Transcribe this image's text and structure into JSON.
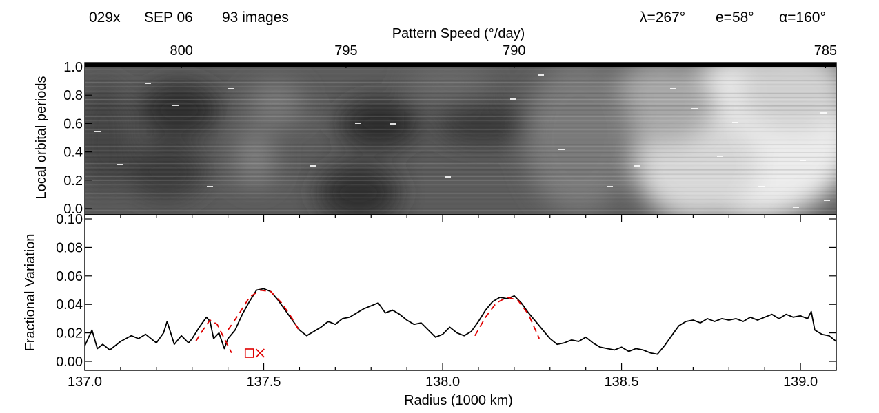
{
  "header": {
    "obs_id": "029x",
    "date": "SEP 06",
    "image_count": "93 images",
    "lambda": "λ=267°",
    "emission": "e=58°",
    "phase": "α=160°"
  },
  "chart_data": [
    {
      "type": "heatmap",
      "colormap": "grayscale",
      "ylabel": "Local orbital periods",
      "ylim": [
        0,
        1.0
      ],
      "yticks": [
        0.0,
        0.2,
        0.4,
        0.6,
        0.8,
        1.0
      ],
      "ytick_labels": [
        "0.0",
        "0.2",
        "0.4",
        "0.6",
        "0.8",
        "1.0"
      ],
      "top_axis": {
        "label": "Pattern Speed (°/day)",
        "ticks": [
          {
            "radius": 137.27,
            "label": "800"
          },
          {
            "radius": 137.73,
            "label": "795"
          },
          {
            "radius": 138.2,
            "label": "790"
          },
          {
            "radius": 139.07,
            "label": "785"
          }
        ]
      },
      "xlim": [
        137.0,
        139.1
      ]
    },
    {
      "type": "line",
      "xlabel": "Radius (1000 km)",
      "ylabel": "Fractional Variation",
      "xlim": [
        137.0,
        139.1
      ],
      "ylim": [
        0.0,
        0.1
      ],
      "xticks": [
        137.0,
        137.5,
        138.0,
        138.5,
        139.0
      ],
      "xtick_labels": [
        "137.0",
        "137.5",
        "138.0",
        "138.5",
        "139.0"
      ],
      "yticks": [
        0.0,
        0.02,
        0.04,
        0.06,
        0.08,
        0.1
      ],
      "ytick_labels": [
        "0.00",
        "0.02",
        "0.04",
        "0.06",
        "0.08",
        "0.10"
      ],
      "series": [
        {
          "style": "solid",
          "color": "#000000",
          "x": [
            137.0,
            137.02,
            137.035,
            137.05,
            137.07,
            137.1,
            137.13,
            137.15,
            137.17,
            137.2,
            137.22,
            137.23,
            137.24,
            137.25,
            137.27,
            137.29,
            137.3,
            137.32,
            137.34,
            137.35,
            137.36,
            137.375,
            137.39,
            137.4,
            137.42,
            137.44,
            137.46,
            137.48,
            137.5,
            137.52,
            137.54,
            137.56,
            137.58,
            137.6,
            137.62,
            137.64,
            137.66,
            137.68,
            137.7,
            137.72,
            137.74,
            137.76,
            137.78,
            137.8,
            137.82,
            137.84,
            137.86,
            137.88,
            137.9,
            137.92,
            137.94,
            137.96,
            137.98,
            138.0,
            138.02,
            138.04,
            138.06,
            138.08,
            138.1,
            138.12,
            138.14,
            138.16,
            138.18,
            138.2,
            138.22,
            138.24,
            138.26,
            138.28,
            138.3,
            138.32,
            138.34,
            138.36,
            138.38,
            138.4,
            138.42,
            138.44,
            138.46,
            138.48,
            138.5,
            138.52,
            138.54,
            138.56,
            138.58,
            138.6,
            138.62,
            138.64,
            138.66,
            138.68,
            138.7,
            138.72,
            138.74,
            138.76,
            138.78,
            138.8,
            138.82,
            138.84,
            138.86,
            138.88,
            138.9,
            138.92,
            138.94,
            138.96,
            138.98,
            139.0,
            139.02,
            139.03,
            139.04,
            139.06,
            139.08,
            139.1
          ],
          "y": [
            0.011,
            0.022,
            0.009,
            0.012,
            0.008,
            0.014,
            0.018,
            0.016,
            0.019,
            0.013,
            0.02,
            0.028,
            0.02,
            0.012,
            0.018,
            0.013,
            0.016,
            0.024,
            0.031,
            0.028,
            0.016,
            0.02,
            0.009,
            0.016,
            0.022,
            0.033,
            0.042,
            0.05,
            0.051,
            0.049,
            0.043,
            0.036,
            0.029,
            0.022,
            0.018,
            0.021,
            0.024,
            0.028,
            0.026,
            0.03,
            0.031,
            0.034,
            0.037,
            0.039,
            0.041,
            0.034,
            0.036,
            0.033,
            0.029,
            0.026,
            0.027,
            0.022,
            0.017,
            0.019,
            0.024,
            0.02,
            0.018,
            0.021,
            0.028,
            0.036,
            0.042,
            0.045,
            0.044,
            0.046,
            0.041,
            0.034,
            0.028,
            0.022,
            0.016,
            0.012,
            0.013,
            0.015,
            0.014,
            0.017,
            0.013,
            0.01,
            0.009,
            0.008,
            0.01,
            0.007,
            0.009,
            0.008,
            0.006,
            0.005,
            0.011,
            0.018,
            0.025,
            0.028,
            0.029,
            0.027,
            0.03,
            0.028,
            0.03,
            0.029,
            0.03,
            0.028,
            0.031,
            0.029,
            0.031,
            0.033,
            0.03,
            0.033,
            0.031,
            0.032,
            0.03,
            0.035,
            0.022,
            0.019,
            0.018,
            0.014
          ]
        },
        {
          "style": "dashed",
          "color": "#e00000",
          "x": [
            137.31,
            137.33,
            137.35,
            137.37,
            137.39,
            137.41
          ],
          "y": [
            0.014,
            0.022,
            0.029,
            0.026,
            0.016,
            0.006
          ]
        },
        {
          "style": "dashed",
          "color": "#e00000",
          "x": [
            137.4,
            137.43,
            137.46,
            137.49,
            137.52,
            137.55,
            137.58,
            137.6
          ],
          "y": [
            0.022,
            0.033,
            0.045,
            0.05,
            0.049,
            0.041,
            0.03,
            0.021
          ]
        },
        {
          "style": "dashed",
          "color": "#e00000",
          "x": [
            138.09,
            138.12,
            138.15,
            138.18,
            138.21,
            138.24,
            138.27
          ],
          "y": [
            0.018,
            0.031,
            0.041,
            0.045,
            0.043,
            0.033,
            0.016
          ]
        }
      ],
      "markers": [
        {
          "shape": "square",
          "color": "#e00000",
          "x": 137.46,
          "y": 0.0058
        },
        {
          "shape": "x",
          "color": "#e00000",
          "x": 137.49,
          "y": 0.0058
        }
      ]
    }
  ]
}
